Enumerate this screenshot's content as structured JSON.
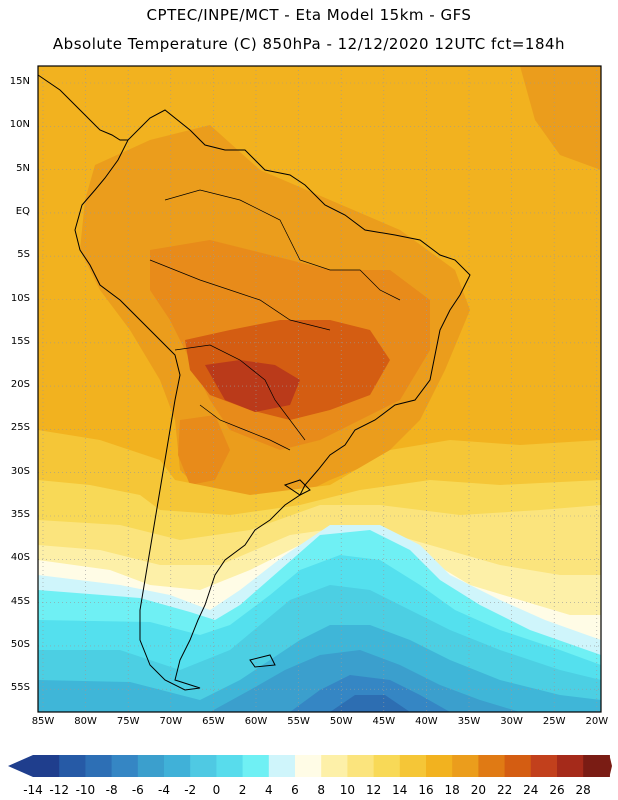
{
  "title": {
    "line1": "CPTEC/INPE/MCT -  Eta Model 15km - GFS",
    "line2": "Absolute Temperature (C) 850hPa - 12/12/2020 12UTC fct=184h"
  },
  "map": {
    "lat_labels": [
      "15N",
      "10N",
      "5N",
      "EQ",
      "5S",
      "10S",
      "15S",
      "20S",
      "25S",
      "30S",
      "35S",
      "40S",
      "45S",
      "50S",
      "55S"
    ],
    "lon_labels": [
      "85W",
      "80W",
      "75W",
      "70W",
      "65W",
      "60W",
      "55W",
      "50W",
      "45W",
      "40W",
      "35W",
      "30W",
      "25W",
      "20W"
    ],
    "colors": {
      "c28": "#ba3a1a",
      "c24": "#d45d12",
      "c22": "#e88b1a",
      "c20": "#eb9d1c",
      "c18": "#f2b21f",
      "c16": "#f5c637",
      "c14": "#f8d957",
      "c12": "#fbe47d",
      "c10": "#fdf0a8",
      "c8": "#fffce6",
      "c6": "#cff5fb",
      "c4": "#6ff0f4",
      "c2": "#54e0ee",
      "c0": "#4ccfe3",
      "cm2": "#3fb6d8",
      "cm4": "#3b9fcd",
      "cm6": "#3586c4",
      "cm8": "#2d6eb2",
      "cm10": "#245aa1"
    }
  },
  "colorbar": {
    "labels": [
      "-14",
      "-12",
      "-10",
      "-8",
      "-6",
      "-4",
      "-2",
      "0",
      "2",
      "4",
      "6",
      "8",
      "10",
      "12",
      "14",
      "16",
      "18",
      "20",
      "22",
      "24",
      "26",
      "28"
    ],
    "colors": [
      "#1f3e8d",
      "#265aa6",
      "#2d6fb5",
      "#3586c4",
      "#3b9fcd",
      "#40b1d8",
      "#4fc9e3",
      "#58dcec",
      "#6ff0f4",
      "#cff5fb",
      "#fffce6",
      "#fdf0a8",
      "#fbe47d",
      "#f8d957",
      "#f5c637",
      "#f2b21f",
      "#eb9d1c",
      "#e07a14",
      "#d45d12",
      "#c2401c",
      "#a52a1a",
      "#7a1c14"
    ],
    "arrow_left": "#1f3e8d",
    "arrow_right": "#7a1c14"
  }
}
